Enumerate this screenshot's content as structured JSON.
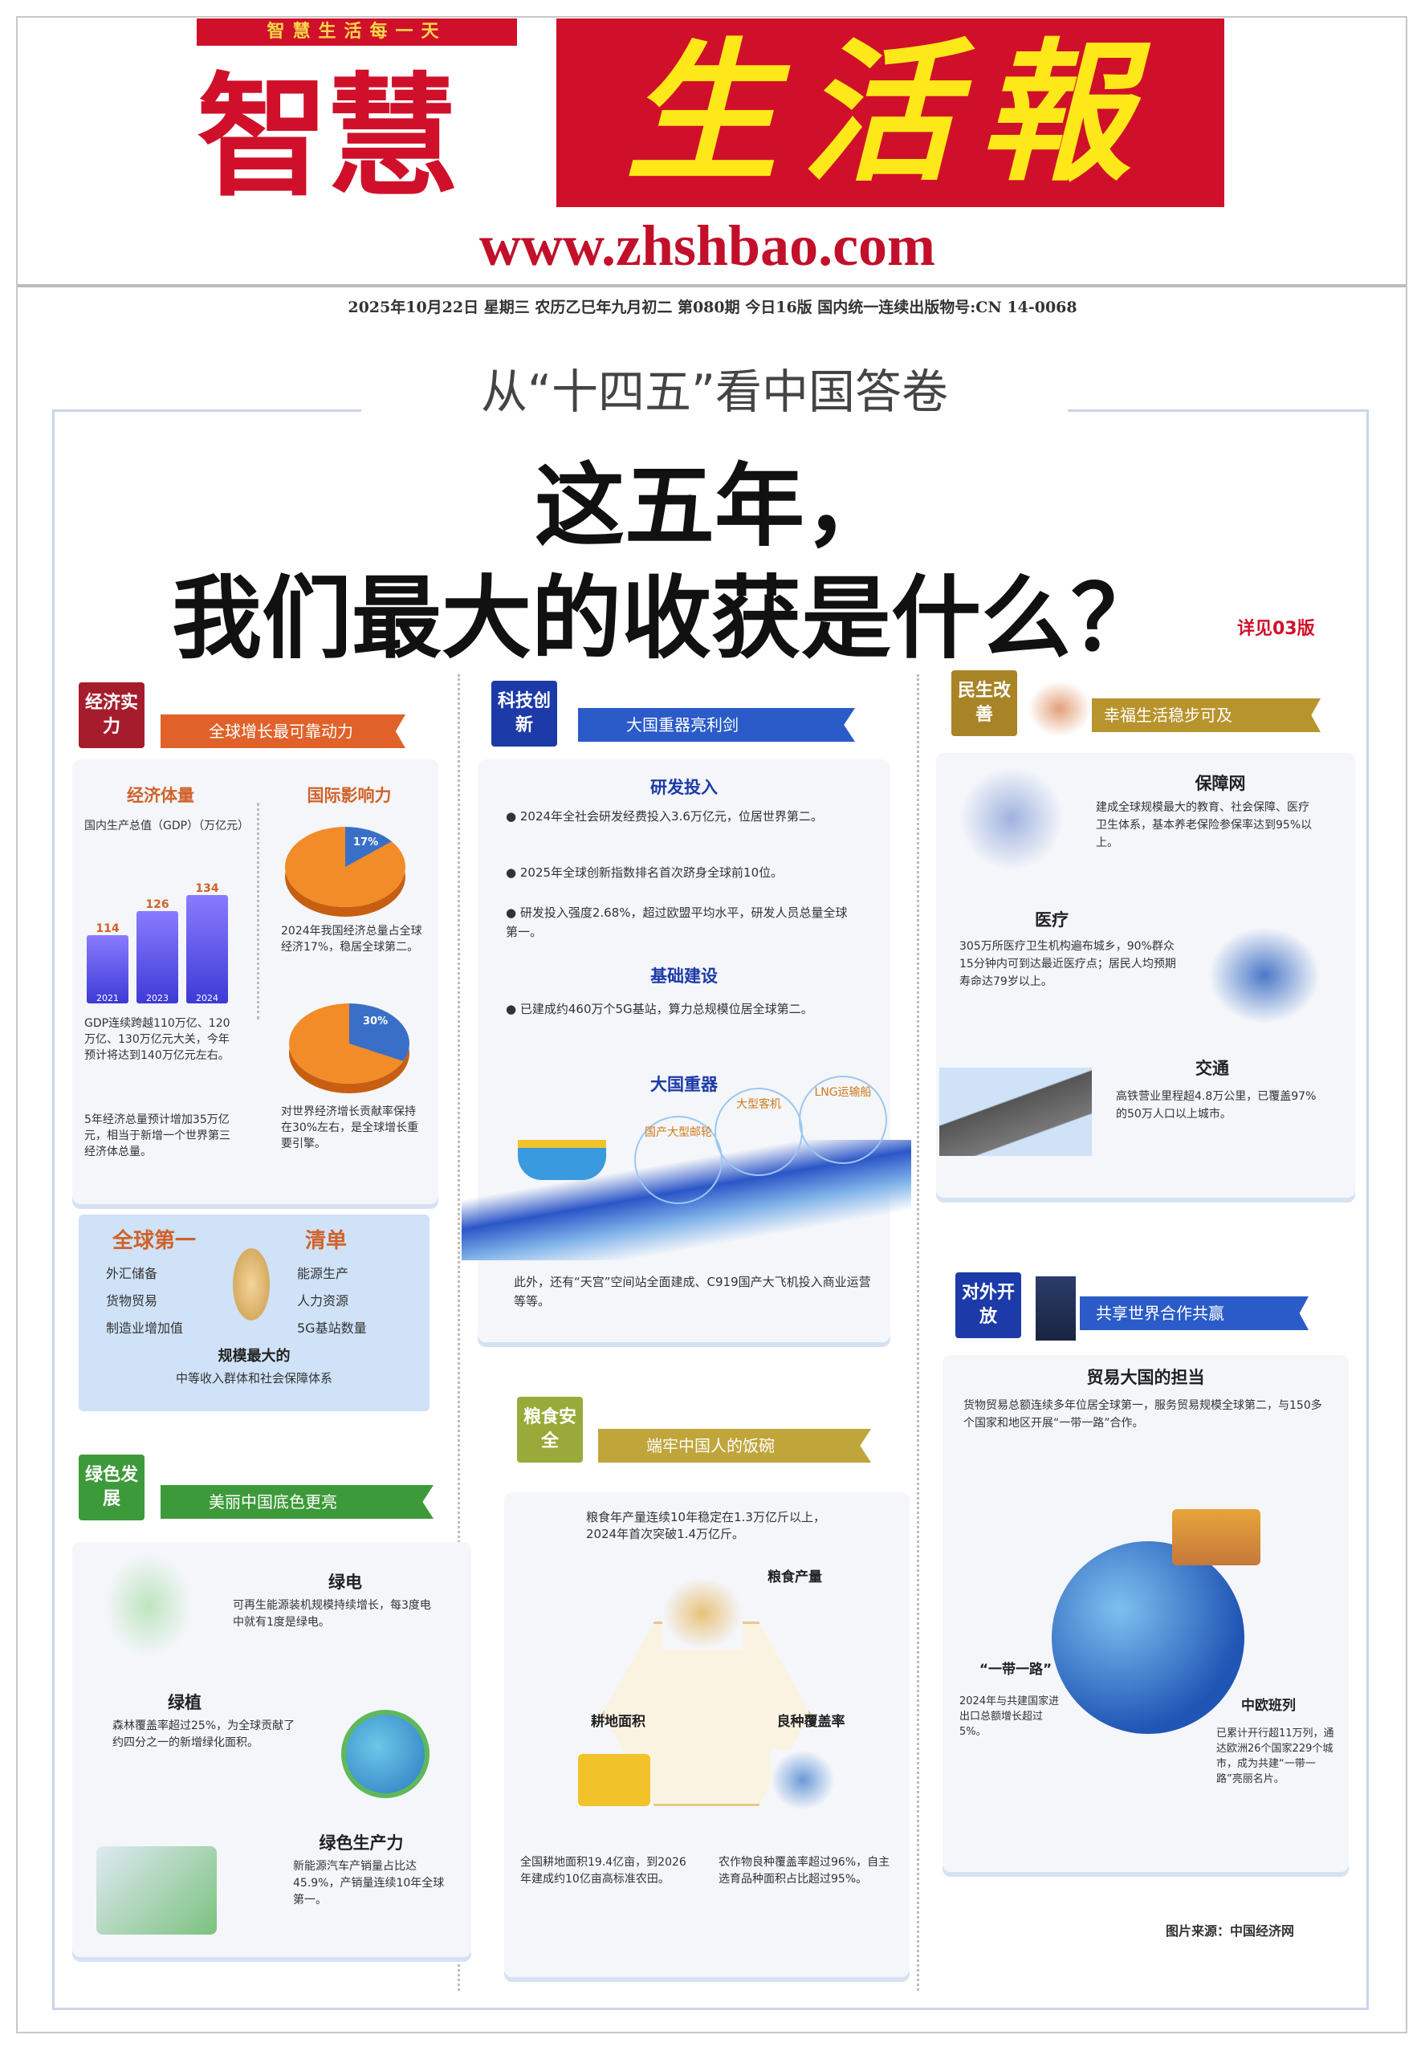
{
  "masthead": {
    "slogan": "智慧生活每一天",
    "name_left": "智慧",
    "name_right": "生活報",
    "url": "www.zhshbao.com"
  },
  "dateline": "2025年10月22日  星期三  农历乙巳年九月初二  第080期  今日16版  国内统一连续出版物号:CN 14-0068",
  "kicker": "从“十四五”看中国答卷",
  "headline": {
    "line1": "这五年，",
    "line2": "我们最大的收获是什么？",
    "see_page": "详见03版"
  },
  "sections": {
    "economy": {
      "tag": "经济实力",
      "ribbon": "全球增长最可靠动力",
      "left_title": "经济体量",
      "chart_title": "国内生产总值（GDP）（万亿元）",
      "right_title": "国际影响力",
      "note1": "GDP连续跨越110万亿、120万亿、130万亿元大关，今年预计将达到140万亿元左右。",
      "note2": "5年经济总量预计增加35万亿元，相当于新增一个世界第三经济体总量。",
      "note3": "2024年我国经济总量占全球经济17%，稳居全球第二。",
      "note4": "对世界经济增长贡献率保持在30%左右，是全球增长重要引擎。",
      "first_list": {
        "title_left": "全球第一",
        "title_right": "清单",
        "items_left": [
          "外汇储备",
          "货物贸易",
          "制造业增加值"
        ],
        "items_right": [
          "能源生产",
          "人力资源",
          "5G基站数量"
        ],
        "footer_title": "规模最大的",
        "footer": "中等收入群体和社会保障体系"
      }
    },
    "tech": {
      "tag": "科技创新",
      "ribbon": "大国重器亮利剑",
      "h1": "研发投入",
      "b1": "2024年全社会研发经费投入3.6万亿元，位居世界第二。",
      "b2": "2025年全球创新指数排名首次跻身全球前10位。",
      "b3": "研发投入强度2.68%，超过欧盟平均水平，研发人员总量全球第一。",
      "h2": "基础建设",
      "b4": "已建成约460万个5G基站，算力总规模位居全球第二。",
      "h3": "大国重器",
      "bubble1": "国产大型邮轮",
      "bubble2": "大型客机",
      "bubble3": "LNG运输船",
      "caption": "此外，还有“天宫”空间站全面建成、C919国产大飞机投入商业运营等等。"
    },
    "livelihood": {
      "tag": "民生改善",
      "ribbon": "幸福生活稳步可及",
      "h1": "保障网",
      "p1": "建成全球规模最大的教育、社会保障、医疗卫生体系，基本养老保险参保率达到95%以上。",
      "h2": "医疗",
      "p2": "305万所医疗卫生机构遍布城乡，90%群众15分钟内可到达最近医疗点；居民人均预期寿命达79岁以上。",
      "h3": "交通",
      "p3": "高铁营业里程超4.8万公里，已覆盖97%的50万人口以上城市。"
    },
    "green": {
      "tag": "绿色发展",
      "ribbon": "美丽中国底色更亮",
      "h1": "绿电",
      "p1": "可再生能源装机规模持续增长，每3度电中就有1度是绿电。",
      "h2": "绿植",
      "p2": "森林覆盖率超过25%，为全球贡献了约四分之一的新增绿化面积。",
      "h3": "绿色生产力",
      "p3": "新能源汽车产销量占比达45.9%，产销量连续10年全球第一。"
    },
    "food": {
      "tag": "粮食安全",
      "ribbon": "端牢中国人的饭碗",
      "intro": "粮食年产量连续10年稳定在1.3万亿斤以上，2024年首次突破1.4万亿斤。",
      "n1": "粮食产量",
      "n2": "耕地面积",
      "n3": "良种覆盖率",
      "p1": "全国耕地面积19.4亿亩，到2026年建成约10亿亩高标准农田。",
      "p2": "农作物良种覆盖率超过96%，自主选育品种面积占比超过95%。"
    },
    "opening": {
      "tag": "对外开放",
      "ribbon": "共享世界合作共赢",
      "h1": "贸易大国的担当",
      "p1": "货物贸易总额连续多年位居全球第一，服务贸易规模全球第二，与150多个国家和地区开展“一带一路”合作。",
      "label1": "“一带一路”",
      "p2": "2024年与共建国家进出口总额增长超过5%。",
      "h2": "中欧班列",
      "p3": "已累计开行超11万列，通达欧洲26个国家229个城市，成为共建“一带一路”亮丽名片。"
    }
  },
  "credit": "图片来源：中国经济网",
  "chart_data": [
    {
      "type": "bar",
      "title": "国内生产总值（GDP）（万亿元）",
      "categories": [
        "2021",
        "2023",
        "2024"
      ],
      "values": [
        114,
        126,
        134
      ]
    },
    {
      "type": "pie",
      "values": [
        17,
        83
      ],
      "labels": [
        "17%",
        ""
      ]
    },
    {
      "type": "pie",
      "values": [
        30,
        70
      ],
      "labels": [
        "30%",
        ""
      ]
    }
  ],
  "colors": {
    "brand_red": "#d0102a",
    "mast_yellow": "#ffe81a",
    "economy": "#a51d2d",
    "tech": "#1c3aa8",
    "livelihood": "#a88427",
    "green": "#3d9a3a",
    "food": "#9aaa3a",
    "opening": "#1c3aa8"
  }
}
